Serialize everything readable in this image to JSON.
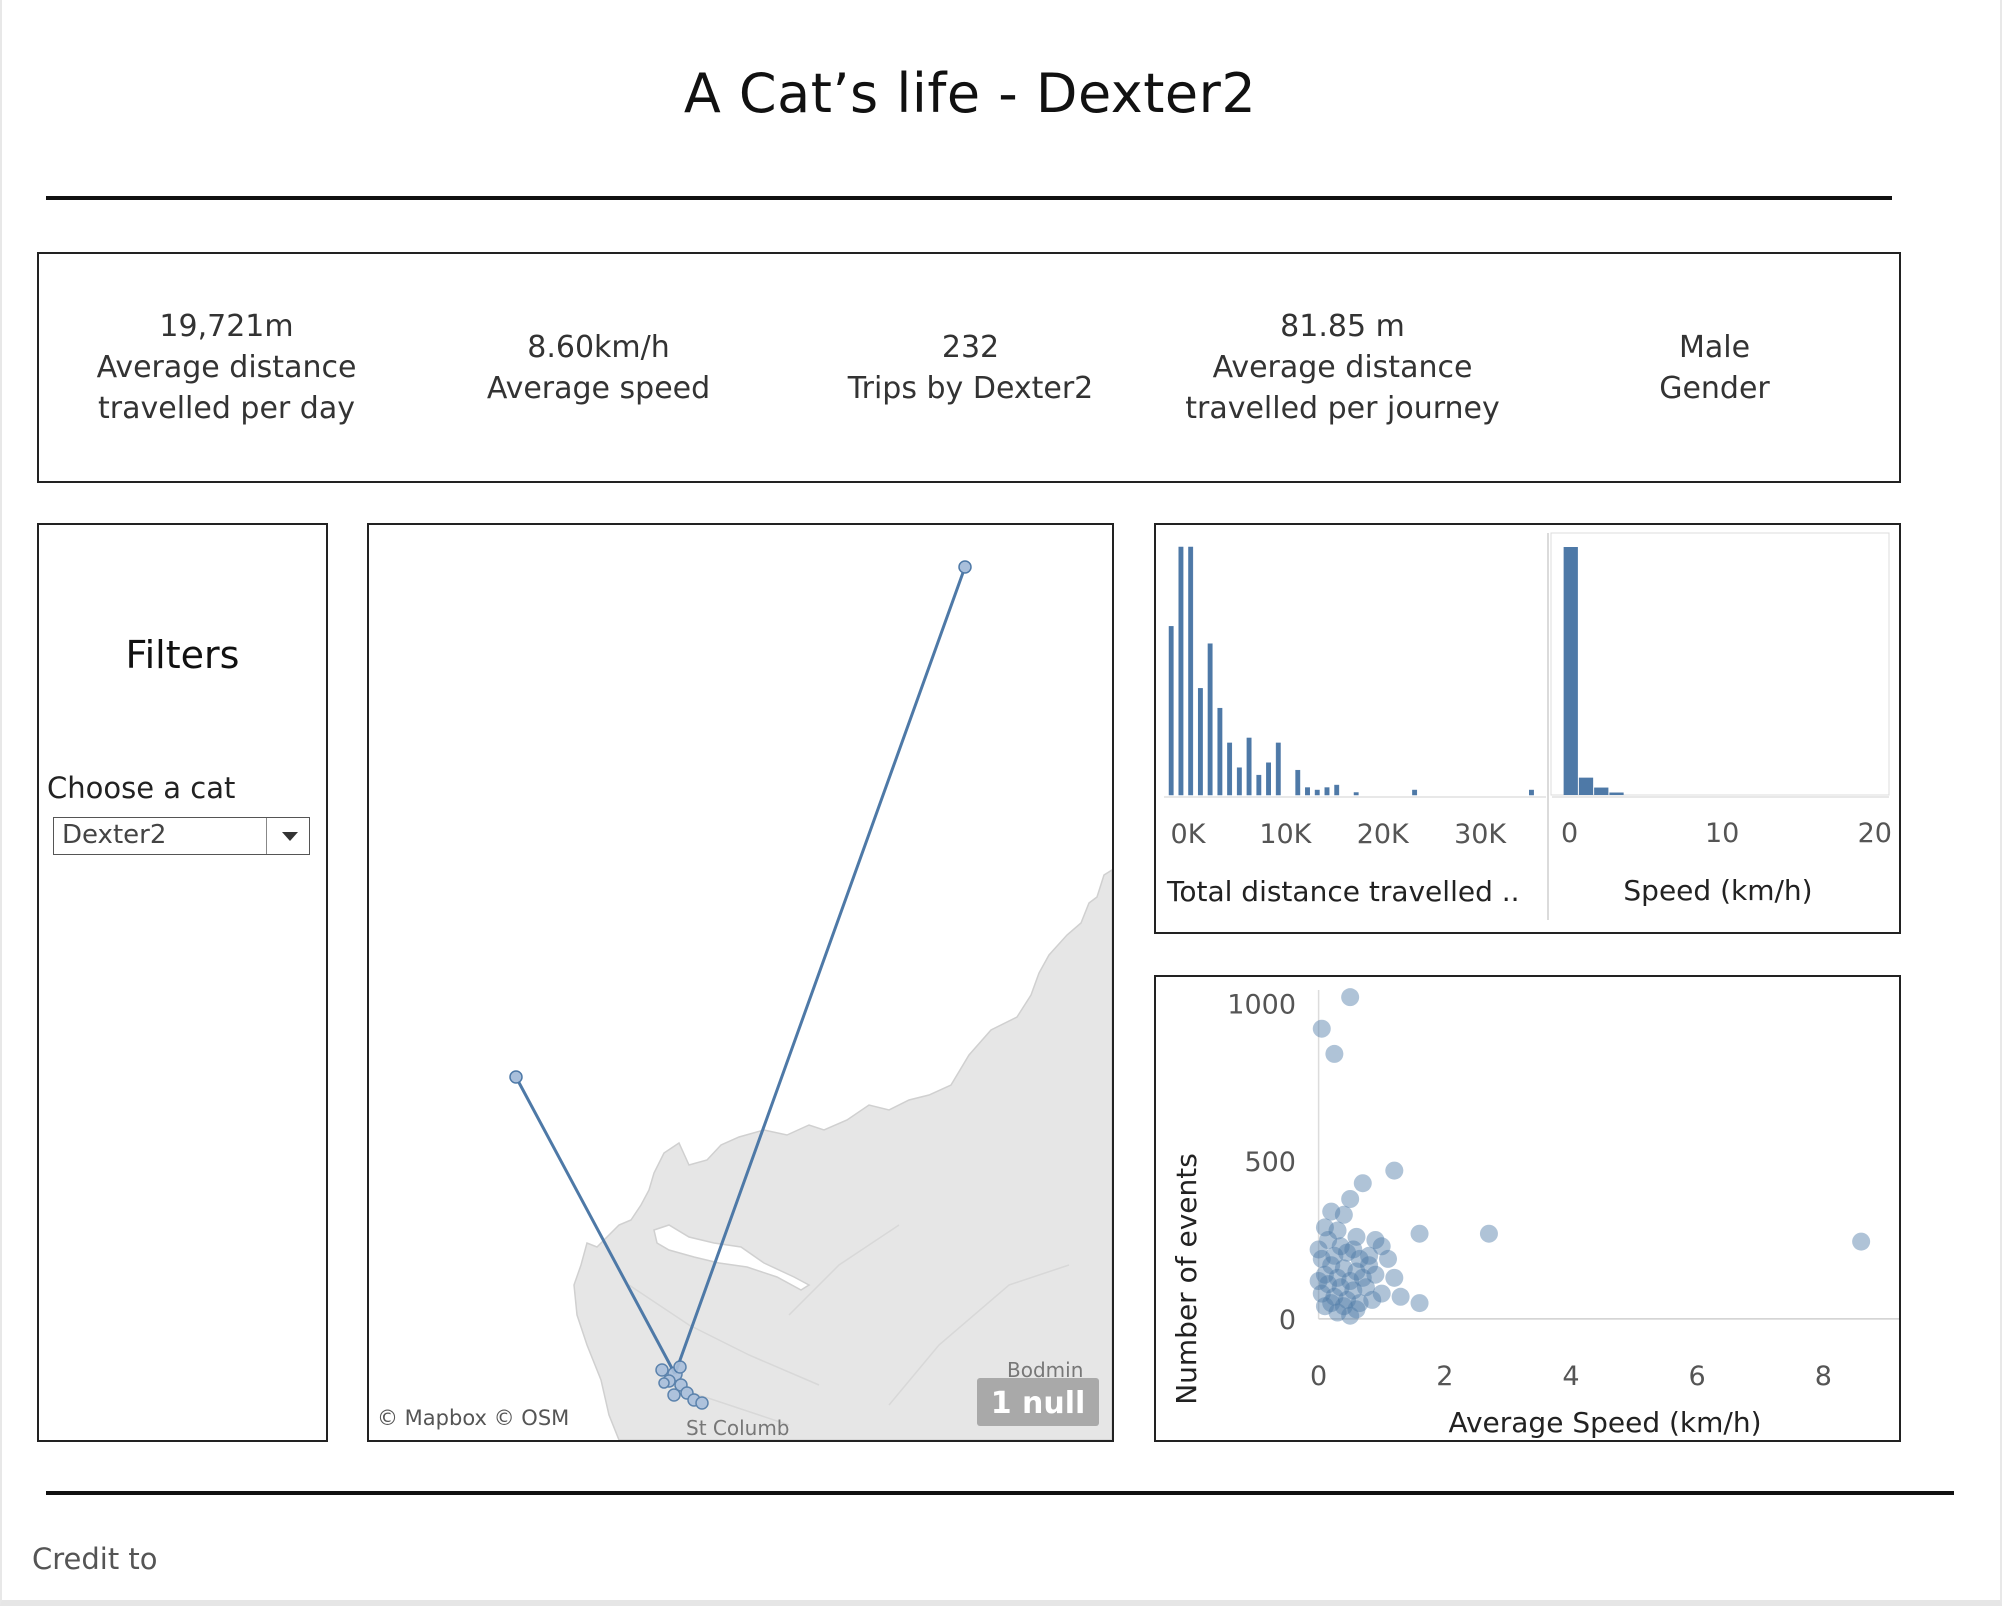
{
  "dashboard": {
    "title": "A Cat’s life - Dexter2",
    "credit": "Credit to"
  },
  "kpis": [
    {
      "value": "19,721m",
      "label_line1": "Average distance",
      "label_line2": "travelled per day"
    },
    {
      "value": "8.60km/h",
      "label_line1": "Average speed",
      "label_line2": ""
    },
    {
      "value": "232",
      "label_line1": "Trips by Dexter2",
      "label_line2": ""
    },
    {
      "value": "81.85 m",
      "label_line1": "Average distance",
      "label_line2": "travelled per journey"
    },
    {
      "value": "Male",
      "label_line1": "Gender",
      "label_line2": ""
    }
  ],
  "filters": {
    "heading": "Filters",
    "choose_label": "Choose a cat",
    "selected_cat": "Dexter2"
  },
  "map": {
    "attribution": "© Mapbox © OSM",
    "null_badge": "1 null",
    "places": [
      "Bodmin",
      "St Columb"
    ],
    "track_color": "#4e79a7"
  },
  "chart_data": [
    {
      "type": "bar",
      "title": "",
      "xlabel": "Total distance travelled ..",
      "ylabel": "",
      "x_ticks": [
        "0K",
        "10K",
        "20K",
        "30K"
      ],
      "bin_width": 1000,
      "bins_start": [
        0,
        1000,
        2000,
        3000,
        4000,
        5000,
        6000,
        7000,
        8000,
        9000,
        10000,
        11000,
        12000,
        13000,
        14000,
        15000,
        16000,
        17000,
        18000,
        19000,
        20000,
        21000,
        22000,
        23000,
        24000,
        25000,
        26000,
        27000,
        28000,
        29000,
        30000,
        31000,
        32000,
        33000,
        34000,
        35000,
        36000,
        37000
      ],
      "values": [
        68,
        100,
        100,
        43,
        61,
        35,
        21,
        11,
        23,
        8,
        13,
        21,
        0,
        10,
        3,
        2,
        3,
        4,
        0,
        1,
        0,
        0,
        0,
        0,
        0,
        2,
        0,
        0,
        0,
        0,
        0,
        0,
        0,
        0,
        0,
        0,
        0,
        2
      ],
      "xlim": [
        0,
        38000
      ],
      "color": "#4e79a7"
    },
    {
      "type": "bar",
      "title": "",
      "xlabel": "Speed (km/h)",
      "ylabel": "",
      "x_ticks": [
        "0",
        "10",
        "20"
      ],
      "bin_width": 1,
      "bins_start": [
        0,
        1,
        2,
        3
      ],
      "values": [
        100,
        7,
        3,
        1
      ],
      "xlim": [
        -0.5,
        21
      ],
      "color": "#4e79a7"
    },
    {
      "type": "scatter",
      "title": "",
      "xlabel": "Average Speed (km/h)",
      "ylabel": "Number of events",
      "x_ticks": [
        "0",
        "2",
        "4",
        "6",
        "8"
      ],
      "y_ticks": [
        "0",
        "500",
        "1000"
      ],
      "xlim": [
        -0.2,
        9.2
      ],
      "ylim": [
        -10,
        1030
      ],
      "color": "#4e79a7",
      "points": [
        [
          0.5,
          1020
        ],
        [
          0.05,
          920
        ],
        [
          0.25,
          840
        ],
        [
          0.7,
          430
        ],
        [
          1.2,
          470
        ],
        [
          0.5,
          380
        ],
        [
          1.6,
          270
        ],
        [
          2.7,
          270
        ],
        [
          8.6,
          245
        ],
        [
          0.4,
          330
        ],
        [
          0.2,
          340
        ],
        [
          0.9,
          250
        ],
        [
          1.0,
          230
        ],
        [
          0.1,
          290
        ],
        [
          0.3,
          280
        ],
        [
          0.6,
          260
        ],
        [
          0.8,
          200
        ],
        [
          0.15,
          250
        ],
        [
          0.35,
          230
        ],
        [
          0.55,
          220
        ],
        [
          0.45,
          210
        ],
        [
          0.25,
          200
        ],
        [
          0.65,
          190
        ],
        [
          0.05,
          190
        ],
        [
          0.2,
          170
        ],
        [
          0.4,
          160
        ],
        [
          0.6,
          150
        ],
        [
          0.1,
          140
        ],
        [
          0.3,
          130
        ],
        [
          0.5,
          120
        ],
        [
          0.7,
          130
        ],
        [
          0.9,
          140
        ],
        [
          1.2,
          130
        ],
        [
          0.15,
          110
        ],
        [
          0.35,
          100
        ],
        [
          0.55,
          90
        ],
        [
          0.75,
          100
        ],
        [
          1.0,
          80
        ],
        [
          1.3,
          70
        ],
        [
          0.05,
          80
        ],
        [
          0.25,
          70
        ],
        [
          0.45,
          60
        ],
        [
          0.65,
          50
        ],
        [
          0.85,
          60
        ],
        [
          0.2,
          50
        ],
        [
          0.4,
          40
        ],
        [
          0.6,
          30
        ],
        [
          0.1,
          40
        ],
        [
          0.3,
          20
        ],
        [
          1.6,
          50
        ],
        [
          0.5,
          10
        ],
        [
          0.0,
          120
        ],
        [
          0.0,
          220
        ],
        [
          0.8,
          170
        ],
        [
          1.1,
          190
        ]
      ]
    }
  ]
}
